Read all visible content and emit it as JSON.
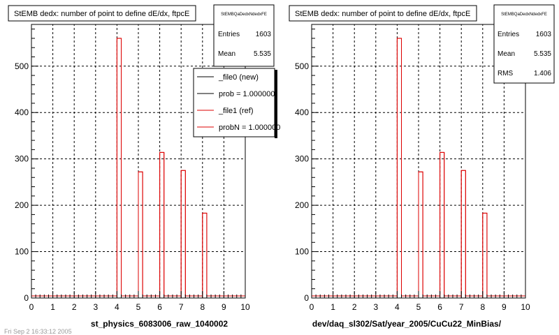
{
  "window": {
    "footer_text": "Fri Sep  2 16:33:12 2005"
  },
  "colors": {
    "ref_series": "#dd0000",
    "new_series": "#000000",
    "grid": "#000000"
  },
  "legend": {
    "entries": [
      {
        "label": "_file0 (new)",
        "color": "#000000"
      },
      {
        "label": "prob = 1.000000",
        "color": "#000000"
      },
      {
        "label": "_file1 (ref)",
        "color": "#dd0000"
      },
      {
        "label": "probN = 1.000000",
        "color": "#dd0000"
      }
    ]
  },
  "chart_data": [
    {
      "type": "bar",
      "title": "StEMB dedx: number of point to define dE/dx, ftpcE",
      "stats_name": "StEMBQaDedxNdedxFE",
      "stats": [
        {
          "label": "Entries",
          "value": "1603"
        },
        {
          "label": "Mean",
          "value": "5.535"
        }
      ],
      "xlabel": "st_physics_6083006_raw_1040002",
      "xlim": [
        0,
        10
      ],
      "ylim": [
        0,
        590
      ],
      "xticks": [
        0,
        1,
        2,
        3,
        4,
        5,
        6,
        7,
        8,
        9,
        10
      ],
      "yticks": [
        0,
        100,
        200,
        300,
        400,
        500
      ],
      "grid": true,
      "bin_width": 0.2,
      "bins": [
        {
          "x": 4.1,
          "value": 560
        },
        {
          "x": 5.1,
          "value": 272
        },
        {
          "x": 6.1,
          "value": 314
        },
        {
          "x": 7.1,
          "value": 275
        },
        {
          "x": 8.1,
          "value": 183
        }
      ]
    },
    {
      "type": "bar",
      "title": "StEMB dedx: number of point to define dE/dx, ftpcE",
      "stats_name": "StEMBQaDedxNdedxFE",
      "stats": [
        {
          "label": "Entries",
          "value": "1603"
        },
        {
          "label": "Mean",
          "value": "5.535"
        },
        {
          "label": "RMS",
          "value": "1.406"
        }
      ],
      "xlabel": "dev/daq_sl302/Sat/year_2005/CuCu22_MinBias/",
      "xlim": [
        0,
        10
      ],
      "ylim": [
        0,
        590
      ],
      "xticks": [
        0,
        1,
        2,
        3,
        4,
        5,
        6,
        7,
        8,
        9,
        10
      ],
      "yticks": [
        0,
        100,
        200,
        300,
        400,
        500
      ],
      "grid": true,
      "bin_width": 0.2,
      "bins": [
        {
          "x": 4.1,
          "value": 560
        },
        {
          "x": 5.1,
          "value": 272
        },
        {
          "x": 6.1,
          "value": 314
        },
        {
          "x": 7.1,
          "value": 275
        },
        {
          "x": 8.1,
          "value": 183
        }
      ]
    }
  ]
}
